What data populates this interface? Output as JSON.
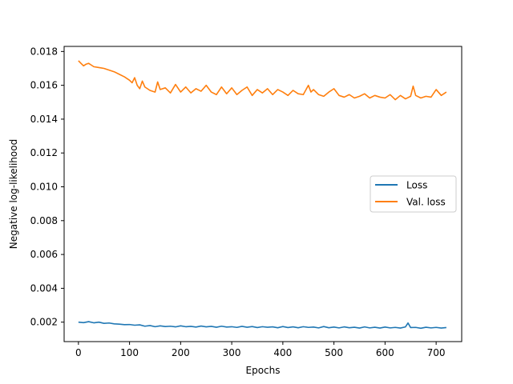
{
  "chart_data": {
    "type": "line",
    "xlabel": "Epochs",
    "ylabel": "Negative log-likelihood",
    "xlim": [
      -28,
      750
    ],
    "ylim": [
      0.00085,
      0.0183
    ],
    "xticks": [
      0,
      100,
      200,
      300,
      400,
      500,
      600,
      700
    ],
    "yticks": [
      0.002,
      0.004,
      0.006,
      0.008,
      0.01,
      0.012,
      0.014,
      0.016,
      0.018
    ],
    "ytick_labels": [
      "0.002",
      "0.004",
      "0.006",
      "0.008",
      "0.010",
      "0.012",
      "0.014",
      "0.016",
      "0.018"
    ],
    "grid": false,
    "legend_position": "center-right",
    "series": [
      {
        "name": "Loss",
        "color": "#1f77b4",
        "x": [
          0,
          10,
          20,
          30,
          40,
          50,
          60,
          70,
          80,
          90,
          100,
          110,
          120,
          130,
          140,
          150,
          160,
          170,
          180,
          190,
          200,
          210,
          220,
          230,
          240,
          250,
          260,
          270,
          280,
          290,
          300,
          310,
          320,
          330,
          340,
          350,
          360,
          370,
          380,
          390,
          400,
          410,
          420,
          430,
          440,
          450,
          460,
          470,
          480,
          490,
          500,
          510,
          520,
          530,
          540,
          550,
          560,
          570,
          580,
          590,
          600,
          610,
          620,
          630,
          640,
          645,
          650,
          660,
          670,
          680,
          690,
          700,
          710,
          720
        ],
        "values": [
          0.002,
          0.00197,
          0.00203,
          0.00196,
          0.002,
          0.00193,
          0.00195,
          0.0019,
          0.00188,
          0.00185,
          0.00186,
          0.00182,
          0.00184,
          0.00176,
          0.0018,
          0.00173,
          0.00178,
          0.00174,
          0.00176,
          0.00172,
          0.00178,
          0.00173,
          0.00175,
          0.00171,
          0.00177,
          0.00172,
          0.00175,
          0.0017,
          0.00176,
          0.00171,
          0.00173,
          0.00169,
          0.00175,
          0.0017,
          0.00174,
          0.00168,
          0.00173,
          0.0017,
          0.00172,
          0.00167,
          0.00174,
          0.00168,
          0.00172,
          0.00167,
          0.00173,
          0.00169,
          0.00171,
          0.00166,
          0.00174,
          0.00167,
          0.00171,
          0.00166,
          0.00172,
          0.00167,
          0.0017,
          0.00165,
          0.00172,
          0.00166,
          0.0017,
          0.00165,
          0.00171,
          0.00166,
          0.00169,
          0.00165,
          0.00172,
          0.00195,
          0.00168,
          0.00169,
          0.00164,
          0.0017,
          0.00166,
          0.00169,
          0.00165,
          0.00168
        ]
      },
      {
        "name": "Val. loss",
        "color": "#ff7f0e",
        "x": [
          0,
          5,
          10,
          15,
          20,
          25,
          30,
          40,
          50,
          60,
          70,
          80,
          90,
          100,
          105,
          110,
          115,
          120,
          125,
          130,
          140,
          150,
          155,
          160,
          170,
          180,
          190,
          200,
          210,
          220,
          230,
          240,
          250,
          260,
          270,
          280,
          290,
          300,
          310,
          320,
          330,
          340,
          350,
          360,
          370,
          380,
          390,
          400,
          410,
          420,
          430,
          440,
          450,
          455,
          460,
          470,
          480,
          490,
          500,
          510,
          520,
          530,
          540,
          550,
          560,
          570,
          580,
          590,
          600,
          610,
          620,
          630,
          640,
          650,
          655,
          660,
          670,
          680,
          690,
          700,
          710,
          720
        ],
        "values": [
          0.01745,
          0.0173,
          0.01715,
          0.01725,
          0.0173,
          0.0172,
          0.0171,
          0.01705,
          0.017,
          0.0169,
          0.0168,
          0.01665,
          0.0165,
          0.0163,
          0.01615,
          0.01645,
          0.016,
          0.0158,
          0.01625,
          0.0159,
          0.0157,
          0.0156,
          0.0162,
          0.01575,
          0.01585,
          0.01555,
          0.01605,
          0.0156,
          0.0159,
          0.01555,
          0.0158,
          0.01565,
          0.016,
          0.0156,
          0.01545,
          0.0159,
          0.0155,
          0.01585,
          0.01545,
          0.0157,
          0.0159,
          0.0154,
          0.01575,
          0.01555,
          0.0158,
          0.01545,
          0.01575,
          0.0156,
          0.0154,
          0.0157,
          0.0155,
          0.01545,
          0.016,
          0.0156,
          0.01575,
          0.01545,
          0.01535,
          0.0156,
          0.0158,
          0.0154,
          0.0153,
          0.01545,
          0.01525,
          0.01535,
          0.0155,
          0.01525,
          0.0154,
          0.0153,
          0.01525,
          0.01545,
          0.01515,
          0.0154,
          0.0152,
          0.01535,
          0.01595,
          0.0154,
          0.01525,
          0.01535,
          0.0153,
          0.01575,
          0.0154,
          0.0156
        ]
      }
    ]
  }
}
